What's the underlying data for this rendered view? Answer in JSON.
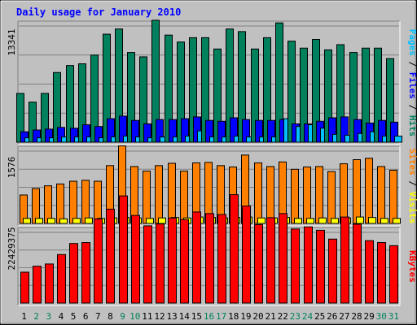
{
  "title": "Daily usage for January 2010",
  "colors": {
    "hits": "#00805C",
    "files": "#0000FF",
    "pages": "#00C0FF",
    "visits": "#FFFF00",
    "sites": "#FF8000",
    "kbytes": "#FF0000",
    "title_text": "#0000FF",
    "weekday": "#000000",
    "weekend": "#00805C"
  },
  "chart_data": {
    "type": "bar",
    "days": [
      "1",
      "2",
      "3",
      "4",
      "5",
      "6",
      "7",
      "8",
      "9",
      "10",
      "11",
      "12",
      "13",
      "14",
      "15",
      "16",
      "17",
      "18",
      "19",
      "20",
      "21",
      "22",
      "23",
      "24",
      "25",
      "26",
      "27",
      "28",
      "29",
      "30",
      "31"
    ],
    "weekend_days": [
      2,
      3,
      9,
      10,
      16,
      17,
      23,
      24,
      30,
      31
    ],
    "panels": [
      {
        "id": "top",
        "axis_max_label": "13341",
        "ymax": 13341,
        "right_labels": [
          {
            "text": "Pages",
            "color_key": "pages"
          },
          {
            "text": " / ",
            "color_key": "weekday"
          },
          {
            "text": "Files",
            "color_key": "files"
          },
          {
            "text": " / ",
            "color_key": "weekday"
          },
          {
            "text": "Hits",
            "color_key": "hits"
          }
        ],
        "series": [
          {
            "color_key": "hits",
            "values": [
              5600,
              4600,
              5600,
              8000,
              8800,
              9000,
              10000,
              12400,
              13000,
              10300,
              9800,
              14000,
              12300,
              11500,
              12000,
              12000,
              10700,
              13000,
              12700,
              10700,
              12000,
              13700,
              11600,
              10800,
              11800,
              10600,
              11200,
              10300,
              10800,
              10800,
              9600
            ]
          },
          {
            "color_key": "files",
            "values": [
              1200,
              1400,
              1500,
              1700,
              1600,
              2000,
              1800,
              2700,
              3000,
              2500,
              2100,
              2600,
              2600,
              2700,
              2900,
              2500,
              2400,
              2800,
              2600,
              2500,
              2500,
              2600,
              2100,
              2100,
              2400,
              2800,
              2900,
              2600,
              2200,
              2500,
              2300
            ]
          },
          {
            "color_key": "pages",
            "values": [
              500,
              500,
              500,
              600,
              600,
              600,
              500,
              600,
              700,
              600,
              500,
              600,
              600,
              700,
              1300,
              600,
              600,
              700,
              600,
              600,
              600,
              2700,
              1800,
              2000,
              1600,
              900,
              800,
              1000,
              1200,
              700,
              700
            ]
          }
        ]
      },
      {
        "id": "mid",
        "axis_max_label": "1576",
        "ymax": 1576,
        "right_labels": [
          {
            "text": "Sites",
            "color_key": "sites"
          },
          {
            "text": " / ",
            "color_key": "weekday"
          },
          {
            "text": "Visits",
            "color_key": "visits"
          }
        ],
        "series": [
          {
            "color_key": "sites",
            "values": [
              620,
              760,
              820,
              860,
              920,
              940,
              920,
              1260,
              1690,
              1240,
              1140,
              1260,
              1310,
              1140,
              1320,
              1330,
              1260,
              1230,
              1490,
              1320,
              1240,
              1340,
              1180,
              1230,
              1240,
              1130,
              1300,
              1390,
              1420,
              1240,
              1160
            ]
          },
          {
            "color_key": "visits",
            "values": [
              110,
              110,
              110,
              100,
              110,
              120,
              110,
              120,
              130,
              120,
              110,
              120,
              130,
              120,
              140,
              130,
              120,
              130,
              140,
              120,
              120,
              130,
              110,
              110,
              120,
              110,
              120,
              140,
              130,
              110,
              110
            ]
          }
        ]
      },
      {
        "id": "bottom",
        "axis_max_label": "22429375",
        "ymax": 22429375,
        "right_labels": [
          {
            "text": "KBytes",
            "color_key": "kbytes"
          }
        ],
        "series": [
          {
            "color_key": "kbytes",
            "values": [
              9800000,
              11700000,
              12400000,
              15400000,
              18900000,
              19200000,
              26700000,
              29800000,
              34000000,
              27800000,
              24500000,
              25100000,
              27000000,
              26500000,
              28900000,
              28400000,
              28100000,
              34400000,
              30800000,
              24900000,
              27100000,
              28400000,
              23500000,
              24200000,
              23100000,
              20300000,
              27300000,
              25000000,
              19800000,
              19200000,
              18200000
            ]
          }
        ]
      }
    ]
  }
}
